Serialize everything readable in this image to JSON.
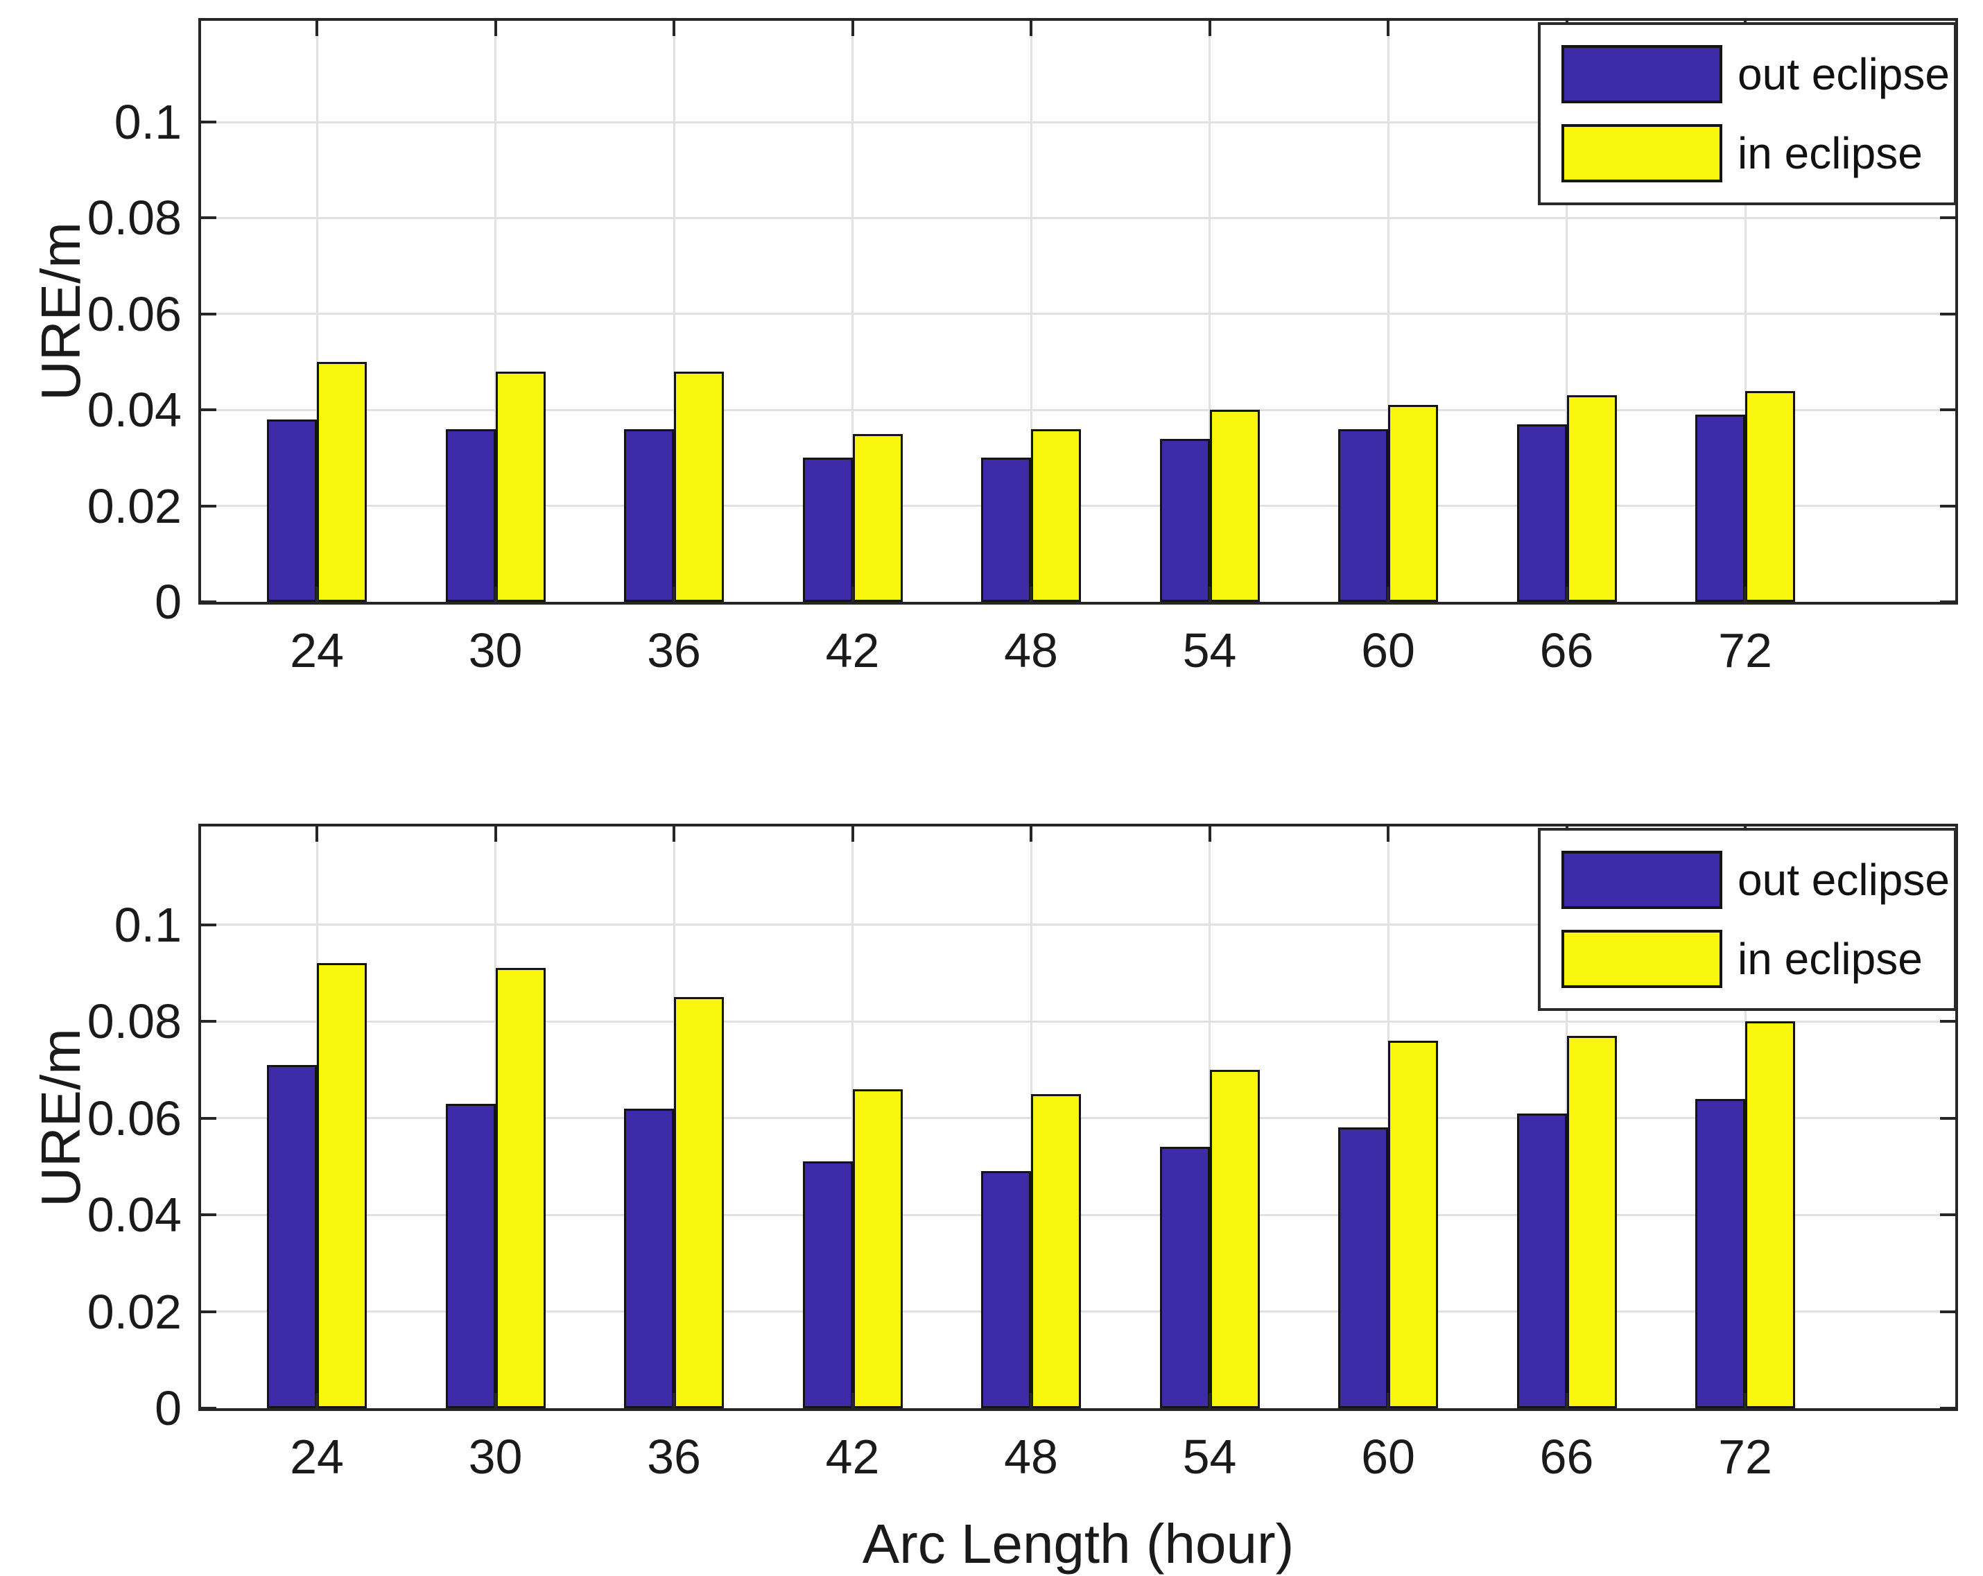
{
  "figure": {
    "background": "#ffffff",
    "axis_color": "#262626",
    "grid_color": "#e1e1e1",
    "bar_edge_color": "#141414",
    "text_color": "#1a1a1a",
    "out_eclipse_color": "#3e2ba8",
    "in_eclipse_color": "#f9f60e"
  },
  "chart_data": [
    {
      "type": "bar",
      "title": "",
      "xlabel": "",
      "ylabel": "URE/m",
      "categories": [
        "24",
        "30",
        "36",
        "42",
        "48",
        "54",
        "60",
        "66",
        "72"
      ],
      "series": [
        {
          "name": "out eclipse",
          "color": "#3e2ba8",
          "values": [
            0.038,
            0.036,
            0.036,
            0.03,
            0.03,
            0.034,
            0.036,
            0.037,
            0.039
          ]
        },
        {
          "name": "in eclipse",
          "color": "#f9f60e",
          "values": [
            0.05,
            0.048,
            0.048,
            0.035,
            0.036,
            0.04,
            0.041,
            0.043,
            0.044
          ]
        }
      ],
      "ylim": [
        0,
        0.1211
      ],
      "ytick_values": [
        0,
        0.02,
        0.04,
        0.06,
        0.08,
        0.1
      ],
      "yticks": [
        "0",
        "0.02",
        "0.04",
        "0.06",
        "0.08",
        "0.1"
      ],
      "grid": true,
      "legend_position": "top-right"
    },
    {
      "type": "bar",
      "title": "",
      "xlabel": "Arc Length (hour)",
      "ylabel": "URE/m",
      "categories": [
        "24",
        "30",
        "36",
        "42",
        "48",
        "54",
        "60",
        "66",
        "72"
      ],
      "series": [
        {
          "name": "out eclipse",
          "color": "#3e2ba8",
          "values": [
            0.071,
            0.063,
            0.062,
            0.051,
            0.049,
            0.054,
            0.058,
            0.061,
            0.064
          ]
        },
        {
          "name": "in eclipse",
          "color": "#f9f60e",
          "values": [
            0.092,
            0.091,
            0.085,
            0.066,
            0.065,
            0.07,
            0.076,
            0.077,
            0.08
          ]
        }
      ],
      "ylim": [
        0,
        0.1203
      ],
      "ytick_values": [
        0,
        0.02,
        0.04,
        0.06,
        0.08,
        0.1
      ],
      "yticks": [
        "0",
        "0.02",
        "0.04",
        "0.06",
        "0.08",
        "0.1"
      ],
      "grid": true,
      "legend_position": "top-right"
    }
  ]
}
